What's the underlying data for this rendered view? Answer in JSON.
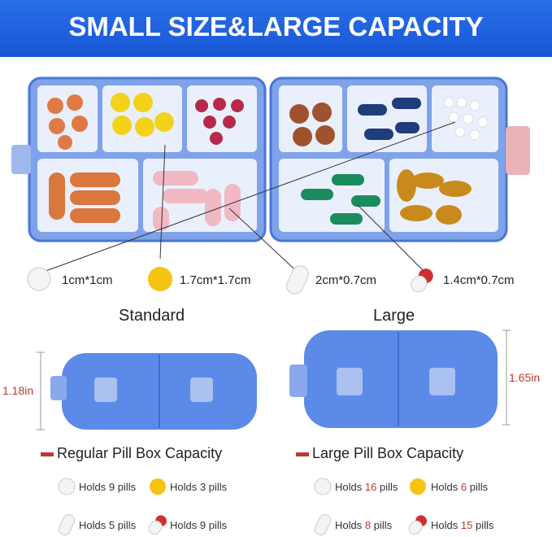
{
  "header": {
    "title": "SMALL SIZE&LARGE CAPACITY"
  },
  "pill_sizes": [
    "1cm*1cm",
    "1.7cm*1.7cm",
    "2cm*0.7cm",
    "1.4cm*0.7cm"
  ],
  "boxes": [
    {
      "name": "Standard",
      "height": "1.18in",
      "capacity_title": "Regular Pill Box Capacity",
      "holds": [
        {
          "pre": "Holds",
          "count": 9,
          "post": "pills"
        },
        {
          "pre": "Holds",
          "count": 3,
          "post": "pills"
        },
        {
          "pre": "Holds",
          "count": 5,
          "post": "pills"
        },
        {
          "pre": "Holds",
          "count": 9,
          "post": "pills"
        }
      ]
    },
    {
      "name": "Large",
      "height": "1.65in",
      "capacity_title": "Large Pill Box Capacity",
      "holds": [
        {
          "pre": "Holds",
          "count": 16,
          "post": "pills"
        },
        {
          "pre": "Holds",
          "count": 6,
          "post": "pills"
        },
        {
          "pre": "Holds",
          "count": 8,
          "post": "pills"
        },
        {
          "pre": "Holds",
          "count": 15,
          "post": "pills"
        }
      ]
    }
  ]
}
